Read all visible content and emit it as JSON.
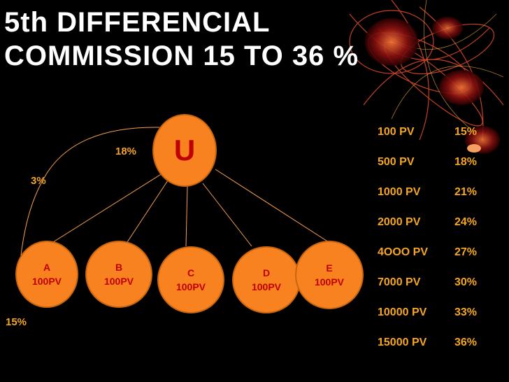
{
  "title": {
    "line1": "5th DIFFERENCIAL",
    "line2": "COMMISSION 15 TO 36 %"
  },
  "root_node": {
    "label": "U",
    "rate": "18%"
  },
  "side_labels": {
    "left_upper": "3%",
    "left_lower": "15%"
  },
  "nodes": [
    {
      "letter": "A",
      "pv": "100PV"
    },
    {
      "letter": "B",
      "pv": "100PV"
    },
    {
      "letter": "C",
      "pv": "100PV"
    },
    {
      "letter": "D",
      "pv": "100PV"
    },
    {
      "letter": "E",
      "pv": "100PV"
    }
  ],
  "commission_table": [
    {
      "pv": "100 PV",
      "rate": "15%"
    },
    {
      "pv": "500 PV",
      "rate": "18%"
    },
    {
      "pv": "1000 PV",
      "rate": "21%"
    },
    {
      "pv": "2000 PV",
      "rate": "24%"
    },
    {
      "pv": "4OOO PV",
      "rate": "27%"
    },
    {
      "pv": "7000 PV",
      "rate": "30%"
    },
    {
      "pv": "10000 PV",
      "rate": "33%"
    },
    {
      "pv": "15000 PV",
      "rate": "36%"
    }
  ],
  "colors": {
    "node_fill": "#f7821f",
    "node_text": "#c00000",
    "accent_text": "#f5a623",
    "background": "#000000"
  }
}
